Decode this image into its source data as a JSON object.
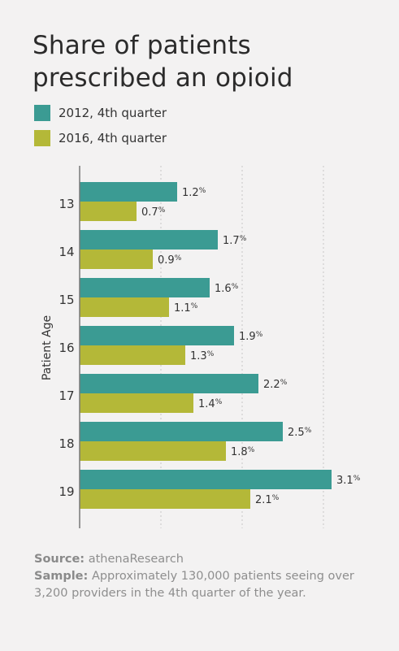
{
  "title": "Share of patients prescribed an opioid",
  "colors": {
    "series_2012": "#3b9b93",
    "series_2016": "#b4b838",
    "grid": "#c7c7c7",
    "axis": "#777777"
  },
  "chart_data": {
    "type": "bar",
    "orientation": "horizontal",
    "title": "Share of patients prescribed an opioid",
    "ylabel": "Patient Age",
    "categories": [
      "13",
      "14",
      "15",
      "16",
      "17",
      "18",
      "19"
    ],
    "series": [
      {
        "name": "2012, 4th quarter",
        "values": [
          1.2,
          1.7,
          1.6,
          1.9,
          2.2,
          2.5,
          3.1
        ],
        "labels": [
          "1.2",
          "1.7",
          "1.6",
          "1.9",
          "2.2",
          "2.5",
          "3.1"
        ]
      },
      {
        "name": "2016, 4th quarter",
        "values": [
          0.7,
          0.9,
          1.1,
          1.3,
          1.4,
          1.8,
          2.1
        ],
        "labels": [
          "0.7",
          "0.9",
          "1.1",
          "1.3",
          "1.4",
          "1.8",
          "2.1"
        ]
      }
    ],
    "value_suffix": "%",
    "xlim": [
      0,
      3.1
    ],
    "grid": true,
    "legend_position": "top-left"
  },
  "footer": {
    "source_label": "Source:",
    "source_text": "athenaResearch",
    "sample_label": "Sample:",
    "sample_text": "Approximately 130,000 patients seeing over 3,200 providers in the 4th quarter of the year."
  }
}
